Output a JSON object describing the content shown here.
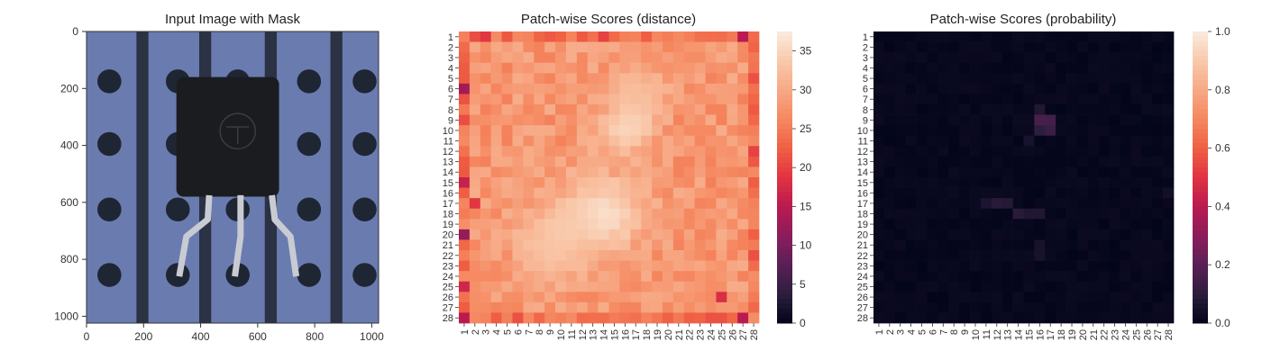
{
  "chart_data": [
    {
      "type": "image",
      "title": "Input Image with Mask",
      "xlabel": "",
      "ylabel": "",
      "xlim": [
        0,
        1024
      ],
      "ylim": [
        1024,
        0
      ],
      "xticks": [
        "0",
        "200",
        "400",
        "600",
        "800",
        "1000"
      ],
      "yticks": [
        "0",
        "200",
        "400",
        "600",
        "800",
        "1000"
      ],
      "content": "transistor on blue perforated board",
      "colors": {
        "background": "#6a7bb0",
        "stripes": "#2a3243",
        "holes": "#1f2633",
        "body": "#1a1c20",
        "leads": "#c8cbd2"
      }
    },
    {
      "type": "heatmap",
      "title": "Patch-wise Scores (distance)",
      "xlabel": "",
      "ylabel": "",
      "rows": 28,
      "cols": 28,
      "x_ticks": [
        "1",
        "2",
        "3",
        "4",
        "5",
        "6",
        "7",
        "8",
        "9",
        "10",
        "11",
        "12",
        "13",
        "14",
        "15",
        "16",
        "17",
        "18",
        "19",
        "20",
        "21",
        "22",
        "23",
        "24",
        "25",
        "26",
        "27",
        "28"
      ],
      "y_ticks": [
        "1",
        "2",
        "3",
        "4",
        "5",
        "6",
        "7",
        "8",
        "9",
        "10",
        "11",
        "12",
        "13",
        "14",
        "15",
        "16",
        "17",
        "18",
        "19",
        "20",
        "21",
        "22",
        "23",
        "24",
        "25",
        "26",
        "27",
        "28"
      ],
      "vmin": 0,
      "vmax": 37.5,
      "colorbar_ticks": [
        "0",
        "5",
        "10",
        "15",
        "20",
        "25",
        "30",
        "35"
      ],
      "colorbar_values": [
        0,
        5,
        10,
        15,
        20,
        25,
        30,
        35
      ],
      "base": 28,
      "border_low": 24,
      "hotspots": [
        {
          "row": 10,
          "col": 16,
          "value": 36,
          "spread": 1.6
        },
        {
          "row": 9,
          "col": 17,
          "value": 35,
          "spread": 1.3
        },
        {
          "row": 18,
          "col": 14,
          "value": 37,
          "spread": 2.6
        },
        {
          "row": 20,
          "col": 10,
          "value": 35,
          "spread": 2.2
        },
        {
          "row": 22,
          "col": 9,
          "value": 33,
          "spread": 2.0
        },
        {
          "row": 6,
          "col": 17,
          "value": 33,
          "spread": 1.8
        }
      ],
      "lowspots": [
        {
          "row": 6,
          "col": 1,
          "value": 13
        },
        {
          "row": 20,
          "col": 1,
          "value": 12
        },
        {
          "row": 28,
          "col": 1,
          "value": 15
        },
        {
          "row": 1,
          "col": 27,
          "value": 15
        },
        {
          "row": 28,
          "col": 27,
          "value": 15
        },
        {
          "row": 15,
          "col": 1,
          "value": 16
        },
        {
          "row": 25,
          "col": 1,
          "value": 17
        },
        {
          "row": 1,
          "col": 3,
          "value": 19
        },
        {
          "row": 1,
          "col": 14,
          "value": 20
        },
        {
          "row": 12,
          "col": 28,
          "value": 20
        },
        {
          "row": 17,
          "col": 2,
          "value": 19
        },
        {
          "row": 26,
          "col": 25,
          "value": 18
        }
      ],
      "palette": [
        "#03051a",
        "#2c1e3e",
        "#5a1f56",
        "#8b1d5b",
        "#bb1a50",
        "#e13342",
        "#f06043",
        "#f58860",
        "#f7a985",
        "#f9c9ab",
        "#faebdd"
      ]
    },
    {
      "type": "heatmap",
      "title": "Patch-wise Scores (probability)",
      "xlabel": "",
      "ylabel": "",
      "rows": 28,
      "cols": 28,
      "x_ticks": [
        "1",
        "2",
        "3",
        "4",
        "5",
        "6",
        "7",
        "8",
        "9",
        "10",
        "11",
        "12",
        "13",
        "14",
        "15",
        "16",
        "17",
        "18",
        "19",
        "20",
        "21",
        "22",
        "23",
        "24",
        "25",
        "26",
        "27",
        "28"
      ],
      "y_ticks": [
        "1",
        "2",
        "3",
        "4",
        "5",
        "6",
        "7",
        "8",
        "9",
        "10",
        "11",
        "12",
        "13",
        "14",
        "15",
        "16",
        "17",
        "18",
        "19",
        "20",
        "21",
        "22",
        "23",
        "24",
        "25",
        "26",
        "27",
        "28"
      ],
      "vmin": 0,
      "vmax": 1,
      "colorbar_ticks": [
        "0.0",
        "0.2",
        "0.4",
        "0.6",
        "0.8",
        "1.0"
      ],
      "colorbar_values": [
        0,
        0.2,
        0.4,
        0.6,
        0.8,
        1.0
      ],
      "base": 0.02,
      "hotspots": [
        {
          "row": 9,
          "col": 16,
          "value": 0.16
        },
        {
          "row": 9,
          "col": 17,
          "value": 0.15
        },
        {
          "row": 10,
          "col": 17,
          "value": 0.13
        },
        {
          "row": 10,
          "col": 16,
          "value": 0.1
        },
        {
          "row": 8,
          "col": 16,
          "value": 0.07
        },
        {
          "row": 17,
          "col": 12,
          "value": 0.09
        },
        {
          "row": 17,
          "col": 13,
          "value": 0.08
        },
        {
          "row": 18,
          "col": 14,
          "value": 0.09
        },
        {
          "row": 18,
          "col": 15,
          "value": 0.07
        },
        {
          "row": 18,
          "col": 16,
          "value": 0.07
        },
        {
          "row": 17,
          "col": 11,
          "value": 0.06
        },
        {
          "row": 21,
          "col": 16,
          "value": 0.05
        },
        {
          "row": 22,
          "col": 16,
          "value": 0.05
        },
        {
          "row": 11,
          "col": 15,
          "value": 0.05
        },
        {
          "row": 16,
          "col": 28,
          "value": 0.04
        }
      ],
      "palette": [
        "#03051a",
        "#2c1e3e",
        "#5a1f56",
        "#8b1d5b",
        "#bb1a50",
        "#e13342",
        "#f06043",
        "#f58860",
        "#f7a985",
        "#f9c9ab",
        "#faebdd"
      ]
    }
  ]
}
